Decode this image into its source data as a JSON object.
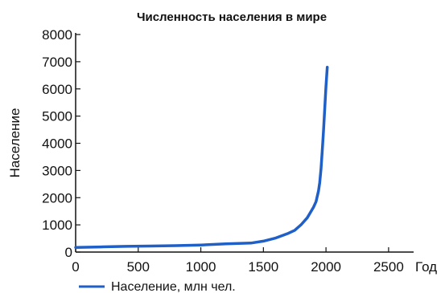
{
  "chart_data": {
    "type": "line",
    "title": "Численность населения в мире",
    "xlabel": "Год",
    "ylabel": "Население",
    "xlim": [
      0,
      2700
    ],
    "ylim": [
      0,
      8000
    ],
    "x_ticks": [
      0,
      500,
      1000,
      1500,
      2000,
      2500
    ],
    "y_ticks": [
      0,
      1000,
      2000,
      3000,
      4000,
      5000,
      6000,
      7000,
      8000
    ],
    "grid": false,
    "legend_position": "bottom-left",
    "colors": {
      "series": "#1f5fc8",
      "axis": "#111111"
    },
    "series": [
      {
        "name": "Население, млн чел.",
        "x": [
          0,
          200,
          400,
          600,
          800,
          1000,
          1200,
          1300,
          1400,
          1500,
          1600,
          1700,
          1750,
          1800,
          1850,
          1900,
          1920,
          1940,
          1950,
          1960,
          1970,
          1980,
          1990,
          2000,
          2010
        ],
        "values": [
          170,
          190,
          210,
          220,
          235,
          260,
          300,
          320,
          330,
          400,
          520,
          690,
          800,
          1000,
          1260,
          1650,
          1850,
          2250,
          2550,
          3050,
          3700,
          4450,
          5300,
          6100,
          6800
        ]
      }
    ]
  }
}
